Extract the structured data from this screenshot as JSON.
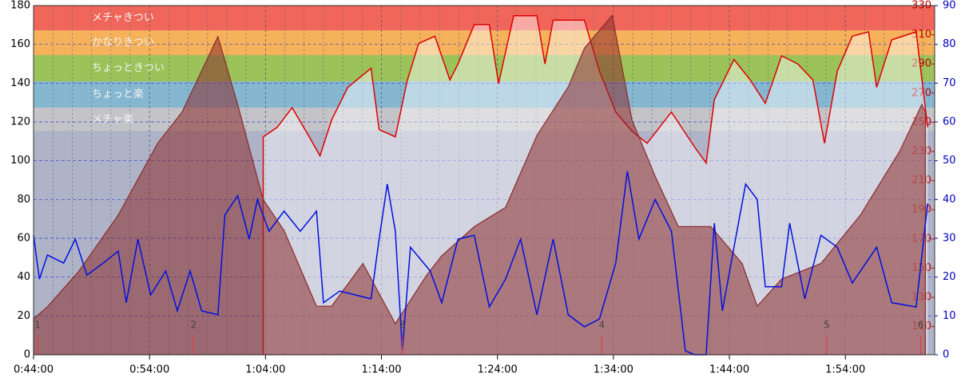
{
  "chart_data": {
    "type": "line",
    "xlim": [
      44,
      121.7
    ],
    "xticks": [
      {
        "value": 44,
        "label": "0:44:00"
      },
      {
        "value": 54,
        "label": "0:54:00"
      },
      {
        "value": 64,
        "label": "1:04:00"
      },
      {
        "value": 74,
        "label": "1:14:00"
      },
      {
        "value": 84,
        "label": "1:24:00"
      },
      {
        "value": 94,
        "label": "1:34:00"
      },
      {
        "value": 104,
        "label": "1:44:00"
      },
      {
        "value": 114,
        "label": "1:54:00"
      }
    ],
    "ylim": [
      0,
      180
    ],
    "yticks": [
      0,
      20,
      40,
      60,
      80,
      100,
      120,
      140,
      160,
      180
    ],
    "y2lim": [
      90.7,
      330
    ],
    "y2ticks": [
      110,
      130,
      150,
      170,
      190,
      210,
      230,
      250,
      270,
      290,
      310,
      330
    ],
    "y3lim": [
      0,
      90
    ],
    "y3ticks": [
      0,
      10,
      20,
      30,
      40,
      50,
      60,
      70,
      80,
      90
    ],
    "zones": [
      {
        "label": "メチャきつい",
        "range": [
          313,
          330
        ],
        "color": "#f0665a"
      },
      {
        "label": "かなりきつい",
        "range": [
          296,
          313
        ],
        "color": "#f5b25a"
      },
      {
        "label": "ちょっときつい",
        "range": [
          278,
          296
        ],
        "color": "#9cc25a"
      },
      {
        "label": "ちょっと楽",
        "range": [
          260,
          278
        ],
        "color": "#86b7d0"
      },
      {
        "label": "メチャ楽",
        "range": [
          244,
          260
        ],
        "color": "#c4c4c8"
      }
    ],
    "laps": {
      "x": [
        44.34,
        57.8,
        75.8,
        93.0,
        112.4,
        120.5
      ],
      "labels": [
        "1",
        "2",
        "3",
        "4",
        "5",
        "6"
      ]
    },
    "series": [
      {
        "type": "area",
        "axis": "y",
        "color": "#8b2c2c",
        "x": [
          44.0,
          45.2,
          47.9,
          51.3,
          54.7,
          56.8,
          59.9,
          61.6,
          63.8,
          65.6,
          68.4,
          69.7,
          72.4,
          75.2,
          77.9,
          79.2,
          82.0,
          84.7,
          87.4,
          90.1,
          91.5,
          93.9,
          95.6,
          97.6,
          99.6,
          102.4,
          105.1,
          106.4,
          108.5,
          111.9,
          115.3,
          118.7,
          120.6,
          120.9
        ],
        "values": [
          18.5,
          24.7,
          43,
          72,
          109,
          125,
          164,
          129,
          80,
          64,
          25,
          25,
          47,
          16,
          41,
          51,
          66,
          76,
          113,
          138,
          158,
          175,
          121,
          92,
          66,
          66,
          47,
          25,
          39,
          47,
          72,
          105,
          129,
          125
        ]
      },
      {
        "type": "line",
        "axis": "y2",
        "color": "#e00000",
        "x": [
          63.8,
          65.0,
          66.3,
          67.7,
          68.7,
          69.7,
          71.1,
          73.1,
          73.8,
          75.2,
          76.2,
          77.2,
          78.6,
          79.9,
          80.6,
          82.0,
          83.3,
          84.1,
          85.4,
          87.4,
          88.1,
          88.8,
          91.5,
          92.8,
          94.2,
          95.6,
          96.9,
          99.0,
          101.0,
          102.0,
          102.7,
          104.4,
          105.8,
          107.1,
          108.5,
          109.9,
          111.2,
          112.2,
          113.3,
          114.6,
          116.0,
          116.7,
          118.0,
          120.1,
          121.1
        ],
        "values": [
          240,
          246.5,
          260,
          241,
          227,
          251.6,
          274,
          287,
          245,
          240,
          278,
          304,
          309,
          279,
          290,
          317,
          317,
          276.5,
          323,
          323,
          290,
          320,
          320,
          285,
          257,
          244,
          235.6,
          257,
          233,
          222,
          265.6,
          293,
          279,
          263,
          295.6,
          290,
          279,
          235.6,
          285,
          309,
          312,
          274,
          306.5,
          312,
          246.5
        ]
      },
      {
        "type": "line",
        "axis": "y3",
        "color": "#0010e0",
        "x": [
          44.0,
          44.5,
          45.2,
          46.6,
          47.6,
          48.6,
          50.0,
          51.3,
          52.0,
          53.0,
          54.1,
          55.4,
          56.4,
          57.5,
          58.5,
          59.9,
          60.5,
          61.6,
          62.6,
          63.3,
          64.3,
          65.6,
          67.0,
          68.4,
          69.0,
          70.4,
          73.1,
          73.8,
          74.5,
          75.2,
          75.8,
          76.5,
          78.2,
          79.2,
          80.6,
          82.0,
          83.3,
          84.7,
          86.0,
          87.4,
          88.8,
          90.1,
          91.5,
          92.8,
          94.2,
          95.2,
          96.2,
          97.6,
          99.0,
          100.2,
          101.0,
          102.0,
          102.7,
          103.4,
          104.4,
          105.4,
          106.4,
          107.1,
          108.5,
          109.2,
          110.5,
          111.9,
          113.3,
          114.6,
          116.7,
          118.0,
          120.1,
          121.1
        ],
        "values": [
          30.8,
          19.5,
          25.7,
          23.6,
          29.8,
          20.5,
          23.6,
          26.7,
          13.4,
          29.8,
          15.4,
          21.6,
          11.3,
          21.6,
          11.3,
          10.3,
          36,
          41,
          29.8,
          40,
          31.8,
          37,
          31.8,
          37,
          13.4,
          16.4,
          14.4,
          29.8,
          44,
          31.8,
          1,
          27.7,
          21.6,
          13.4,
          29.8,
          30.8,
          12.3,
          19.5,
          29.8,
          10.3,
          29.8,
          10.3,
          7.2,
          9.2,
          23.6,
          47.3,
          29.8,
          40,
          31.8,
          1,
          0,
          0,
          33.9,
          11.3,
          27.7,
          44,
          40,
          17.5,
          17.5,
          33.9,
          14.4,
          30.8,
          27.7,
          18.5,
          27.7,
          13.4,
          12.3,
          39
        ]
      }
    ]
  }
}
